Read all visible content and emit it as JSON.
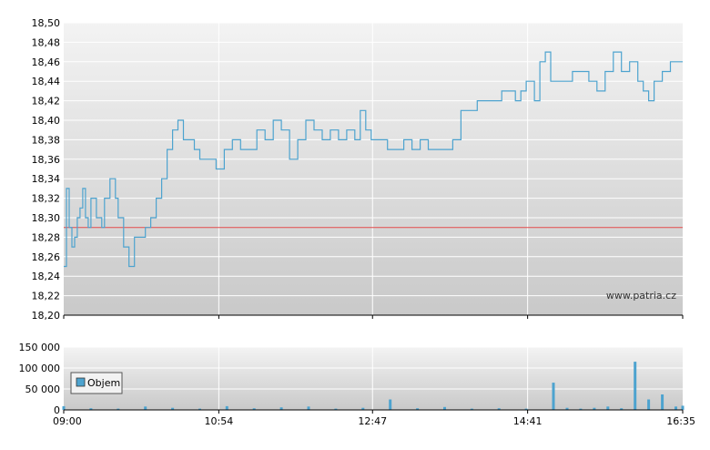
{
  "watermark": "www.patria.cz",
  "colors": {
    "price_line": "#4da3cf",
    "volume_bar": "#4da3cf",
    "reference_line": "#e34a4a",
    "grid": "#ffffff",
    "axis": "#000000"
  },
  "chart_data": [
    {
      "type": "line",
      "name": "price",
      "x_ticks": [
        "09:00",
        "10:54",
        "12:47",
        "14:41",
        "16:35"
      ],
      "y_ticks": [
        "18,50",
        "18,48",
        "18,46",
        "18,44",
        "18,42",
        "18,40",
        "18,38",
        "18,36",
        "18,34",
        "18,32",
        "18,30",
        "18,28",
        "18,26",
        "18,24",
        "18,22",
        "18,20"
      ],
      "ylim": [
        18.2,
        18.5
      ],
      "reference_value": 18.29,
      "series": [
        {
          "x": [
            "09:00",
            "09:02",
            "09:04",
            "09:06",
            "09:08",
            "09:10",
            "09:12",
            "09:14",
            "09:16",
            "09:18",
            "09:20",
            "09:24",
            "09:28",
            "09:30",
            "09:34",
            "09:36",
            "09:38",
            "09:40",
            "09:44",
            "09:48",
            "09:52",
            "09:56",
            "10:00",
            "10:04",
            "10:08",
            "10:12",
            "10:16",
            "10:20",
            "10:24",
            "10:28",
            "10:32",
            "10:36",
            "10:40",
            "10:46",
            "10:52",
            "10:58",
            "11:04",
            "11:10",
            "11:16",
            "11:22",
            "11:28",
            "11:34",
            "11:40",
            "11:46",
            "11:52",
            "11:58",
            "12:04",
            "12:10",
            "12:16",
            "12:22",
            "12:28",
            "12:34",
            "12:38",
            "12:42",
            "12:46",
            "12:52",
            "12:58",
            "13:04",
            "13:10",
            "13:16",
            "13:22",
            "13:28",
            "13:34",
            "13:40",
            "13:46",
            "13:52",
            "13:58",
            "14:04",
            "14:10",
            "14:16",
            "14:22",
            "14:28",
            "14:32",
            "14:36",
            "14:40",
            "14:46",
            "14:50",
            "14:54",
            "14:58",
            "15:02",
            "15:08",
            "15:14",
            "15:20",
            "15:26",
            "15:32",
            "15:38",
            "15:44",
            "15:50",
            "15:56",
            "16:02",
            "16:06",
            "16:10",
            "16:14",
            "16:20",
            "16:26",
            "16:32",
            "16:35"
          ],
          "y": [
            18.25,
            18.33,
            18.29,
            18.27,
            18.28,
            18.3,
            18.31,
            18.33,
            18.3,
            18.29,
            18.32,
            18.3,
            18.29,
            18.32,
            18.34,
            18.34,
            18.32,
            18.3,
            18.27,
            18.25,
            18.28,
            18.28,
            18.29,
            18.3,
            18.32,
            18.34,
            18.37,
            18.39,
            18.4,
            18.38,
            18.38,
            18.37,
            18.36,
            18.36,
            18.35,
            18.37,
            18.38,
            18.37,
            18.37,
            18.39,
            18.38,
            18.4,
            18.39,
            18.36,
            18.38,
            18.4,
            18.39,
            18.38,
            18.39,
            18.38,
            18.39,
            18.38,
            18.41,
            18.39,
            18.38,
            18.38,
            18.37,
            18.37,
            18.38,
            18.37,
            18.38,
            18.37,
            18.37,
            18.37,
            18.38,
            18.41,
            18.41,
            18.42,
            18.42,
            18.42,
            18.43,
            18.43,
            18.42,
            18.43,
            18.44,
            18.42,
            18.46,
            18.47,
            18.44,
            18.44,
            18.44,
            18.45,
            18.45,
            18.44,
            18.43,
            18.45,
            18.47,
            18.45,
            18.46,
            18.44,
            18.43,
            18.42,
            18.44,
            18.45,
            18.46,
            18.46,
            18.46
          ]
        }
      ]
    },
    {
      "type": "bar",
      "name": "volume",
      "legend": "Objem",
      "y_ticks": [
        "150 000",
        "100 000",
        "50 000",
        "0"
      ],
      "ylim": [
        0,
        150000
      ],
      "x": [
        "09:00",
        "09:20",
        "09:40",
        "10:00",
        "10:20",
        "10:40",
        "11:00",
        "11:20",
        "11:40",
        "12:00",
        "12:20",
        "12:40",
        "13:00",
        "13:20",
        "13:40",
        "14:00",
        "14:20",
        "14:40",
        "15:00",
        "15:10",
        "15:20",
        "15:30",
        "15:40",
        "15:50",
        "16:00",
        "16:10",
        "16:20",
        "16:30",
        "16:35"
      ],
      "values": [
        9000,
        4000,
        3000,
        8000,
        5000,
        3000,
        9000,
        4000,
        6000,
        8000,
        3000,
        5000,
        25000,
        4000,
        7000,
        3000,
        4000,
        3000,
        65000,
        5000,
        3000,
        5000,
        8000,
        4000,
        115000,
        25000,
        37000,
        8000,
        10000
      ]
    }
  ]
}
